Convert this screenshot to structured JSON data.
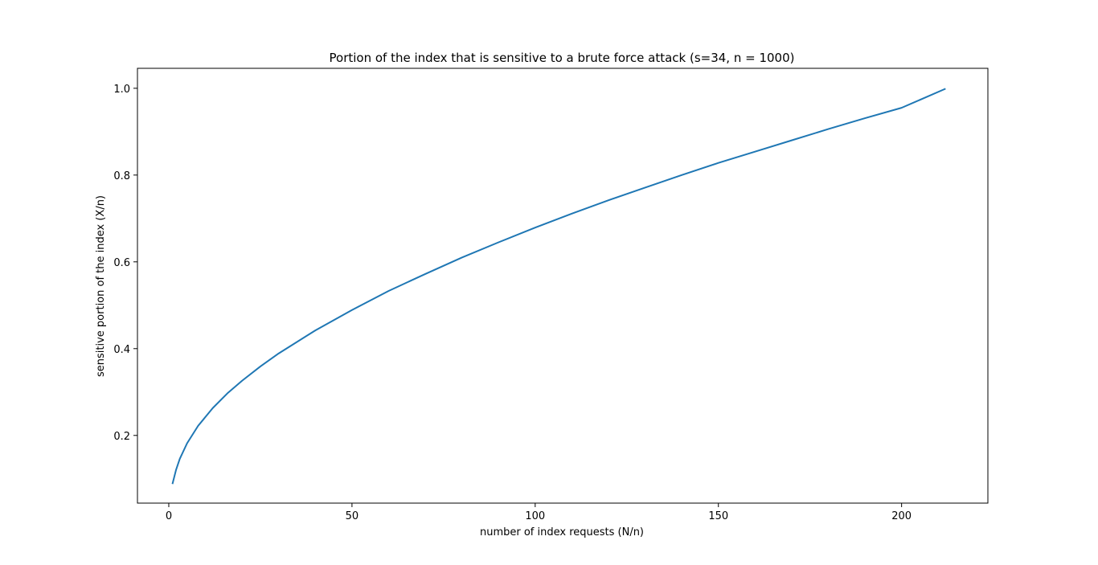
{
  "chart_data": {
    "type": "line",
    "title": "Portion of the index that is sensitive to a brute force attack (s=34, n = 1000)",
    "xlabel": "number of index requests (N/n)",
    "ylabel": "sensitive portion of the index (X/n)",
    "xlim": [
      -8.55,
      223.55
    ],
    "ylim": [
      0.044,
      1.046
    ],
    "xticks": [
      0,
      50,
      100,
      150,
      200
    ],
    "xtick_labels": [
      "0",
      "50",
      "100",
      "150",
      "200"
    ],
    "yticks": [
      0.2,
      0.4,
      0.6,
      0.8,
      1.0
    ],
    "ytick_labels": [
      "0.2",
      "0.4",
      "0.6",
      "0.8",
      "1.0"
    ],
    "grid": false,
    "series": [
      {
        "color": "#1f77b4",
        "x": [
          1,
          2,
          3,
          5,
          8,
          12,
          16,
          20,
          25,
          30,
          40,
          50,
          60,
          70,
          80,
          90,
          100,
          110,
          120,
          130,
          140,
          150,
          160,
          170,
          180,
          190,
          200,
          212
        ],
        "y": [
          0.088,
          0.121,
          0.146,
          0.182,
          0.222,
          0.263,
          0.297,
          0.326,
          0.359,
          0.389,
          0.442,
          0.489,
          0.533,
          0.572,
          0.61,
          0.645,
          0.679,
          0.711,
          0.742,
          0.771,
          0.8,
          0.828,
          0.854,
          0.88,
          0.906,
          0.931,
          0.955,
          0.999
        ]
      }
    ]
  }
}
